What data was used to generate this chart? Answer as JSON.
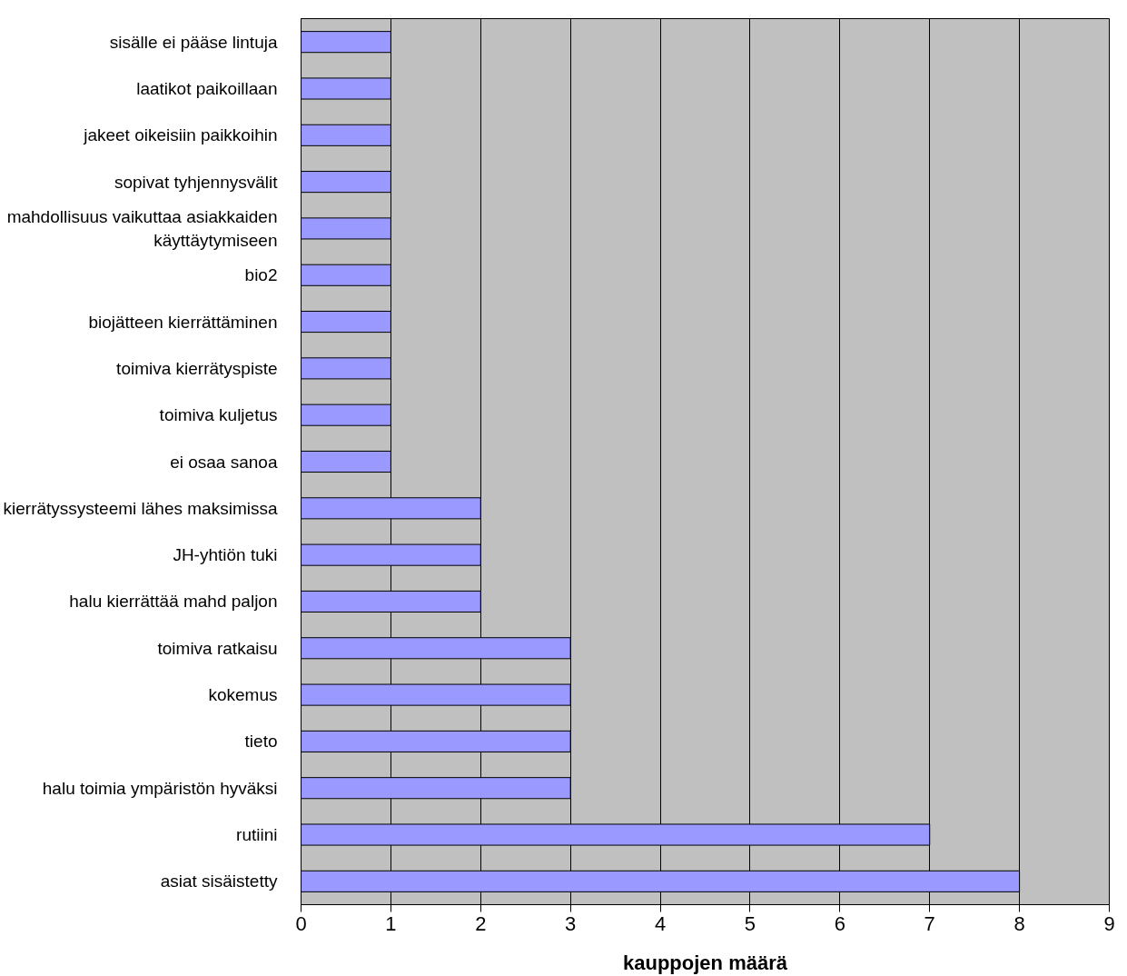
{
  "chart_data": {
    "type": "bar",
    "orientation": "horizontal",
    "xlabel": "kauppojen määrä",
    "categories": [
      "sisälle ei pääse lintuja",
      "laatikot paikoillaan",
      "jakeet oikeisiin paikkoihin",
      "sopivat tyhjennysvälit",
      "mahdollisuus vaikuttaa asiakkaiden käyttäytymiseen",
      "bio2",
      "biojätteen kierrättäminen",
      "toimiva kierrätyspiste",
      "toimiva kuljetus",
      "ei osaa sanoa",
      "kierrätyssysteemi lähes maksimissa",
      "JH-yhtiön tuki",
      "halu kierrättää mahd paljon",
      "toimiva ratkaisu",
      "kokemus",
      "tieto",
      "halu toimia ympäristön hyväksi",
      "rutiini",
      "asiat sisäistetty"
    ],
    "values": [
      1,
      1,
      1,
      1,
      1,
      1,
      1,
      1,
      1,
      1,
      2,
      2,
      2,
      3,
      3,
      3,
      3,
      7,
      8
    ],
    "color": "#9999ff",
    "xlim": [
      0,
      9
    ],
    "xticks": [
      0,
      1,
      2,
      3,
      4,
      5,
      6,
      7,
      8,
      9
    ],
    "grid": "x"
  }
}
